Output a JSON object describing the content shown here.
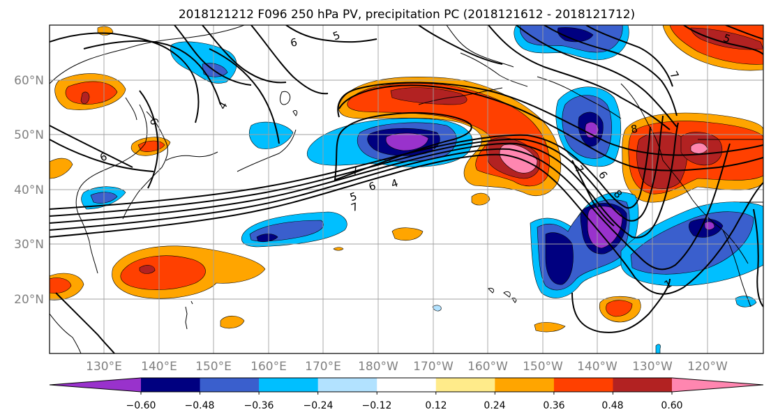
{
  "figure": {
    "title": "2018121212 F096 250 hPa PV, precipitation PC (2018121612 - 2018121712)"
  },
  "map": {
    "lat_labels": [
      "60°N",
      "50°N",
      "40°N",
      "30°N",
      "20°N"
    ],
    "lon_labels": [
      "130°E",
      "140°E",
      "150°E",
      "160°E",
      "170°E",
      "180°W",
      "170°W",
      "160°W",
      "150°W",
      "140°W",
      "130°W",
      "120°W"
    ],
    "contour_labels": [
      "6",
      "5",
      "4",
      "6",
      "7",
      "7",
      "6",
      "5",
      "4",
      "8",
      "7",
      "6",
      "8",
      "7",
      "6",
      "5",
      "1"
    ]
  },
  "colorbar": {
    "colors": [
      "#9932cc",
      "#000080",
      "#3a5fcd",
      "#00bfff",
      "#b2e2ff",
      "#ffffff",
      "#ffeb8a",
      "#ffa500",
      "#ff4000",
      "#b22222",
      "#ff86b0"
    ],
    "tick_labels": [
      "−0.60",
      "−0.48",
      "−0.36",
      "−0.24",
      "−0.12",
      "0.12",
      "0.24",
      "0.36",
      "0.48",
      "0.60"
    ]
  }
}
